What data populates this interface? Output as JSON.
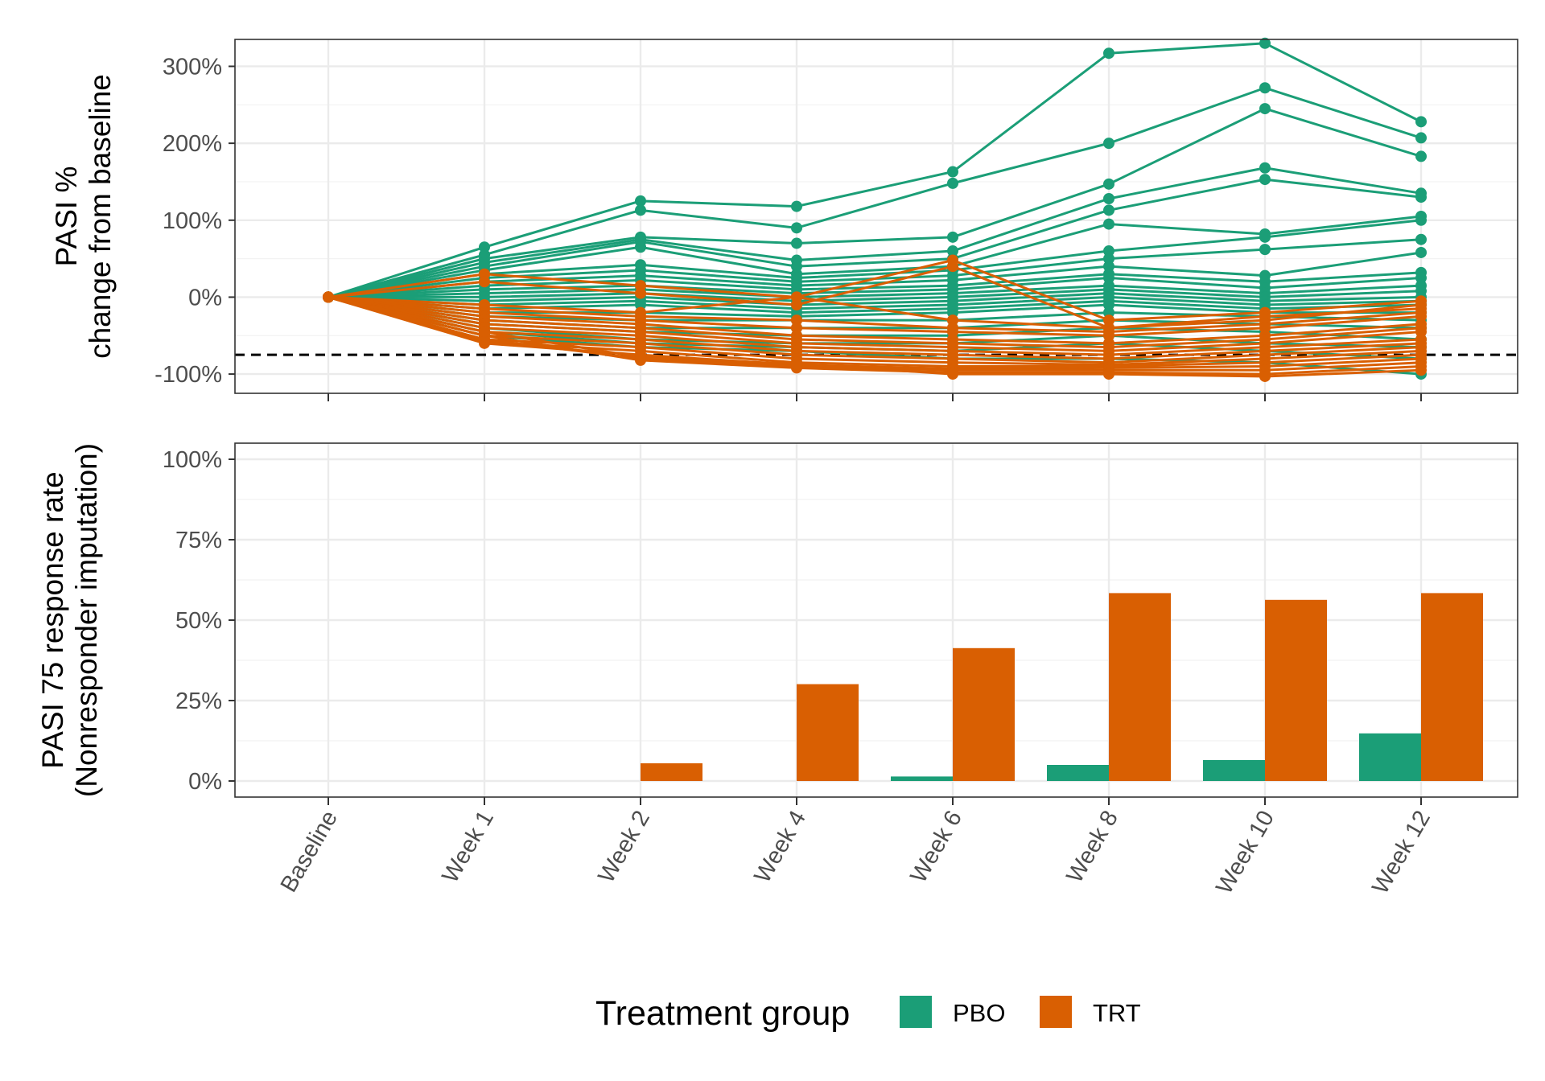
{
  "colors": {
    "PBO": "#1b9e77",
    "TRT": "#d95f02",
    "reference": "#000000"
  },
  "x_categories": [
    "Baseline",
    "Week 1",
    "Week 2",
    "Week 4",
    "Week 6",
    "Week 8",
    "Week 10",
    "Week 12"
  ],
  "legend": {
    "title": "Treatment group",
    "items": [
      {
        "key": "PBO",
        "label": "PBO"
      },
      {
        "key": "TRT",
        "label": "TRT"
      }
    ]
  },
  "chart_data": [
    {
      "type": "line",
      "title": "",
      "xlabel": "",
      "ylabel_lines": [
        "PASI %",
        "change from baseline"
      ],
      "ylim": [
        -125,
        335
      ],
      "yticks": [
        -100,
        0,
        100,
        200,
        300
      ],
      "ytick_labels": [
        "-100%",
        "0%",
        "100%",
        "200%",
        "300%"
      ],
      "reference_line": {
        "y": -75,
        "style": "dashed"
      },
      "grid": true,
      "series": [
        {
          "group": "PBO",
          "values": [
            0,
            65,
            125,
            118,
            163,
            317,
            330,
            228
          ]
        },
        {
          "group": "PBO",
          "values": [
            0,
            55,
            113,
            90,
            148,
            200,
            272,
            207
          ]
        },
        {
          "group": "PBO",
          "values": [
            0,
            50,
            78,
            70,
            78,
            147,
            245,
            183
          ]
        },
        {
          "group": "PBO",
          "values": [
            0,
            45,
            75,
            48,
            60,
            128,
            168,
            135
          ]
        },
        {
          "group": "PBO",
          "values": [
            0,
            40,
            72,
            40,
            50,
            113,
            153,
            130
          ]
        },
        {
          "group": "PBO",
          "values": [
            0,
            35,
            65,
            30,
            40,
            95,
            82,
            105
          ]
        },
        {
          "group": "PBO",
          "values": [
            0,
            30,
            42,
            25,
            35,
            60,
            78,
            100
          ]
        },
        {
          "group": "PBO",
          "values": [
            0,
            25,
            35,
            20,
            28,
            50,
            62,
            75
          ]
        },
        {
          "group": "PBO",
          "values": [
            0,
            20,
            28,
            15,
            22,
            40,
            28,
            58
          ]
        },
        {
          "group": "PBO",
          "values": [
            0,
            15,
            22,
            10,
            15,
            30,
            20,
            32
          ]
        },
        {
          "group": "PBO",
          "values": [
            0,
            10,
            15,
            5,
            10,
            25,
            12,
            25
          ]
        },
        {
          "group": "PBO",
          "values": [
            0,
            5,
            10,
            0,
            5,
            15,
            5,
            15
          ]
        },
        {
          "group": "PBO",
          "values": [
            0,
            0,
            5,
            -5,
            0,
            10,
            0,
            8
          ]
        },
        {
          "group": "PBO",
          "values": [
            0,
            -5,
            0,
            -10,
            -5,
            5,
            -5,
            0
          ]
        },
        {
          "group": "PBO",
          "values": [
            0,
            -10,
            -5,
            -15,
            -10,
            0,
            -10,
            -5
          ]
        },
        {
          "group": "PBO",
          "values": [
            0,
            -15,
            -10,
            -20,
            -15,
            -5,
            -15,
            -10
          ]
        },
        {
          "group": "PBO",
          "values": [
            0,
            -20,
            -20,
            -25,
            -20,
            -10,
            -20,
            -20
          ]
        },
        {
          "group": "PBO",
          "values": [
            0,
            -25,
            -30,
            -30,
            -30,
            -20,
            -25,
            -30
          ]
        },
        {
          "group": "PBO",
          "values": [
            0,
            -30,
            -40,
            -40,
            -40,
            -30,
            -35,
            -40
          ]
        },
        {
          "group": "PBO",
          "values": [
            0,
            -35,
            -45,
            -50,
            -50,
            -40,
            -45,
            -55
          ]
        },
        {
          "group": "PBO",
          "values": [
            0,
            -40,
            -55,
            -60,
            -60,
            -50,
            -60,
            -65
          ]
        },
        {
          "group": "PBO",
          "values": [
            0,
            -45,
            -60,
            -65,
            -70,
            -60,
            -70,
            -80
          ]
        },
        {
          "group": "PBO",
          "values": [
            0,
            -50,
            -65,
            -70,
            -80,
            -80,
            -85,
            -100
          ]
        },
        {
          "group": "TRT",
          "values": [
            0,
            30,
            15,
            0,
            48,
            -30,
            -20,
            -5
          ]
        },
        {
          "group": "TRT",
          "values": [
            0,
            20,
            5,
            -10,
            40,
            -40,
            -30,
            -10
          ]
        },
        {
          "group": "TRT",
          "values": [
            0,
            -10,
            -20,
            0,
            -30,
            -40,
            -25,
            -15
          ]
        },
        {
          "group": "TRT",
          "values": [
            0,
            -15,
            -25,
            -30,
            -40,
            -45,
            -35,
            -20
          ]
        },
        {
          "group": "TRT",
          "values": [
            0,
            -20,
            -30,
            -40,
            -45,
            -50,
            -40,
            -25
          ]
        },
        {
          "group": "TRT",
          "values": [
            0,
            -25,
            -35,
            -50,
            -55,
            -60,
            -50,
            -35
          ]
        },
        {
          "group": "TRT",
          "values": [
            0,
            -30,
            -40,
            -55,
            -60,
            -65,
            -55,
            -40
          ]
        },
        {
          "group": "TRT",
          "values": [
            0,
            -35,
            -45,
            -60,
            -65,
            -70,
            -60,
            -45
          ]
        },
        {
          "group": "TRT",
          "values": [
            0,
            -40,
            -50,
            -65,
            -70,
            -75,
            -65,
            -55
          ]
        },
        {
          "group": "TRT",
          "values": [
            0,
            -45,
            -55,
            -70,
            -75,
            -80,
            -70,
            -60
          ]
        },
        {
          "group": "TRT",
          "values": [
            0,
            -50,
            -60,
            -75,
            -80,
            -85,
            -75,
            -65
          ]
        },
        {
          "group": "TRT",
          "values": [
            0,
            -55,
            -65,
            -80,
            -85,
            -88,
            -80,
            -70
          ]
        },
        {
          "group": "TRT",
          "values": [
            0,
            -58,
            -70,
            -85,
            -90,
            -90,
            -85,
            -75
          ]
        },
        {
          "group": "TRT",
          "values": [
            0,
            -60,
            -75,
            -88,
            -93,
            -92,
            -90,
            -80
          ]
        },
        {
          "group": "TRT",
          "values": [
            0,
            -55,
            -80,
            -90,
            -95,
            -95,
            -95,
            -85
          ]
        },
        {
          "group": "TRT",
          "values": [
            0,
            -50,
            -82,
            -92,
            -98,
            -98,
            -100,
            -90
          ]
        },
        {
          "group": "TRT",
          "values": [
            0,
            -45,
            -78,
            -87,
            -100,
            -100,
            -103,
            -95
          ]
        }
      ]
    },
    {
      "type": "bar",
      "title": "",
      "xlabel": "",
      "ylabel_lines": [
        "PASI 75 response rate",
        "(Nonresponder imputation)"
      ],
      "ylim": [
        -5,
        105
      ],
      "yticks": [
        0,
        25,
        50,
        75,
        100
      ],
      "ytick_labels": [
        "0%",
        "25%",
        "50%",
        "75%",
        "100%"
      ],
      "grid": true,
      "series": [
        {
          "name": "PBO",
          "values": [
            0,
            0,
            0,
            0,
            1.4,
            5,
            6.5,
            14.8
          ]
        },
        {
          "name": "TRT",
          "values": [
            0,
            0,
            5.5,
            30.1,
            41.3,
            58.4,
            56.3,
            58.4
          ]
        }
      ]
    }
  ]
}
